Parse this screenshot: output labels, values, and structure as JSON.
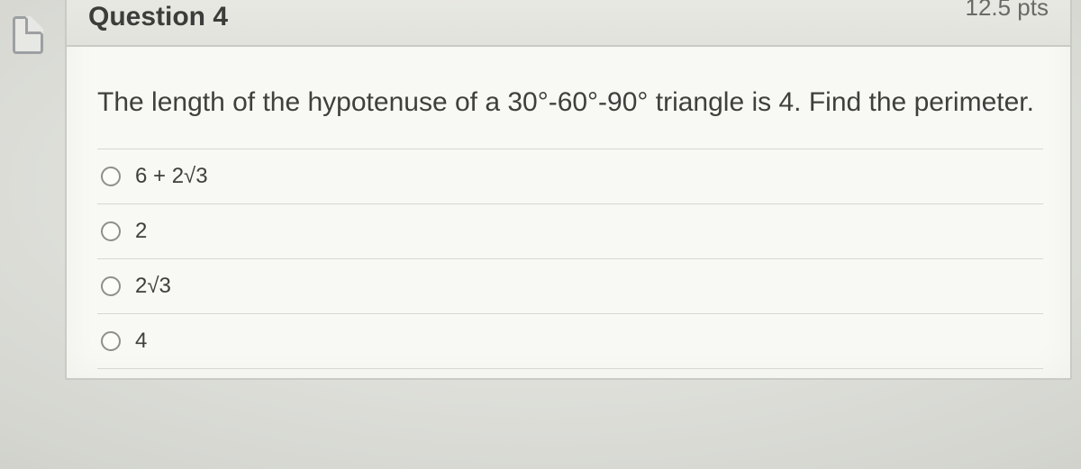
{
  "question": {
    "number_label": "Question 4",
    "points_label": "12.5 pts",
    "prompt_html": "The length of the hypotenuse of a 30°-60°-90° triangle is 4. Find the perimeter.",
    "options": [
      {
        "label": "6 + 2√3"
      },
      {
        "label": "2"
      },
      {
        "label": "2√3"
      },
      {
        "label": "4"
      }
    ]
  },
  "style": {
    "card_bg": "#f8f8f4",
    "card_border": "#c9cac4",
    "header_bg_top": "#e9eae4",
    "header_bg_bottom": "#e1e2dc",
    "text_color": "#3f3f3d",
    "title_color": "#3c3c3a",
    "points_color": "#6a6a66",
    "divider_color": "#d7d8d2",
    "radio_border": "#8f908b",
    "page_bg": "#d8d9d4",
    "title_fontsize": 30,
    "prompt_fontsize": 30,
    "option_fontsize": 24
  }
}
